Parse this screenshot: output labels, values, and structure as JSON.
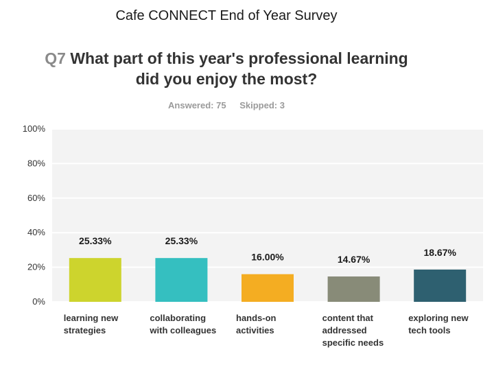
{
  "header": {
    "survey_title": "Cafe CONNECT End of Year Survey",
    "question_number": "Q7",
    "question_text": "What part of this year's professional learning did you enjoy the most?",
    "answered": "Answered: 75",
    "skipped": "Skipped: 3"
  },
  "chart_data": {
    "type": "bar",
    "categories": [
      "learning new strategies",
      "collaborating with colleagues",
      "hands-on activities",
      "content that addressed specific needs",
      "exploring new tech tools"
    ],
    "values": [
      25.33,
      25.33,
      16.0,
      14.67,
      18.67
    ],
    "data_labels": [
      "25.33%",
      "25.33%",
      "16.00%",
      "14.67%",
      "18.67%"
    ],
    "colors": [
      "#cdd42d",
      "#35bfc0",
      "#f4ad22",
      "#888b78",
      "#2e6070"
    ],
    "ylim": [
      0,
      100
    ],
    "yticks": [
      "0%",
      "20%",
      "40%",
      "60%",
      "80%",
      "100%"
    ],
    "grid": true
  }
}
